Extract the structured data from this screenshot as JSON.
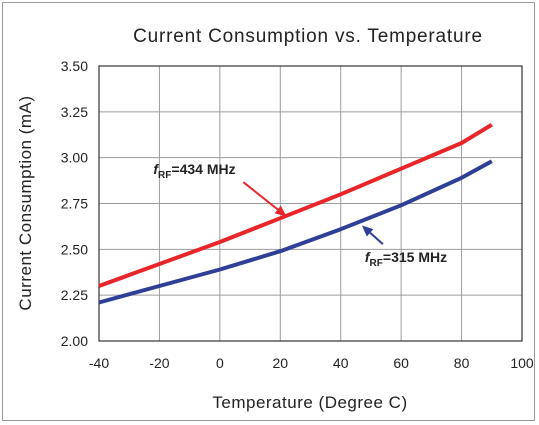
{
  "chart_data": {
    "type": "line",
    "title": "Current Consumption vs. Temperature",
    "xlabel": "Temperature (Degree C)",
    "ylabel": "Current Consumption (mA)",
    "xlim": [
      -40,
      100
    ],
    "ylim": [
      2.0,
      3.5
    ],
    "xticks": [
      -40,
      -20,
      0,
      20,
      40,
      60,
      80,
      100
    ],
    "yticks": [
      "2.00",
      "2.25",
      "2.50",
      "2.75",
      "3.00",
      "3.25",
      "3.50"
    ],
    "grid": true,
    "series": [
      {
        "name": "fRF=434 MHz",
        "color": "#e8262a",
        "x": [
          -40,
          -20,
          0,
          20,
          40,
          60,
          80,
          90
        ],
        "y": [
          2.3,
          2.42,
          2.54,
          2.67,
          2.8,
          2.94,
          3.08,
          3.18
        ]
      },
      {
        "name": "fRF=315 MHz",
        "color": "#2e3f95",
        "x": [
          -40,
          -20,
          0,
          20,
          40,
          60,
          80,
          90
        ],
        "y": [
          2.21,
          2.3,
          2.39,
          2.49,
          2.61,
          2.74,
          2.89,
          2.98
        ]
      }
    ],
    "annotations": [
      {
        "text_main": "f",
        "text_sub": "RF",
        "text_rest": "=434 MHz",
        "series": 0,
        "arrow_to_x": 22,
        "arrow_to_y": 2.68,
        "text_x": -22,
        "text_y": 2.91
      },
      {
        "text_main": "f",
        "text_sub": "RF",
        "text_rest": "=315 MHz",
        "series": 1,
        "arrow_to_x": 47,
        "arrow_to_y": 2.63,
        "text_x": 48,
        "text_y": 2.43
      }
    ]
  }
}
